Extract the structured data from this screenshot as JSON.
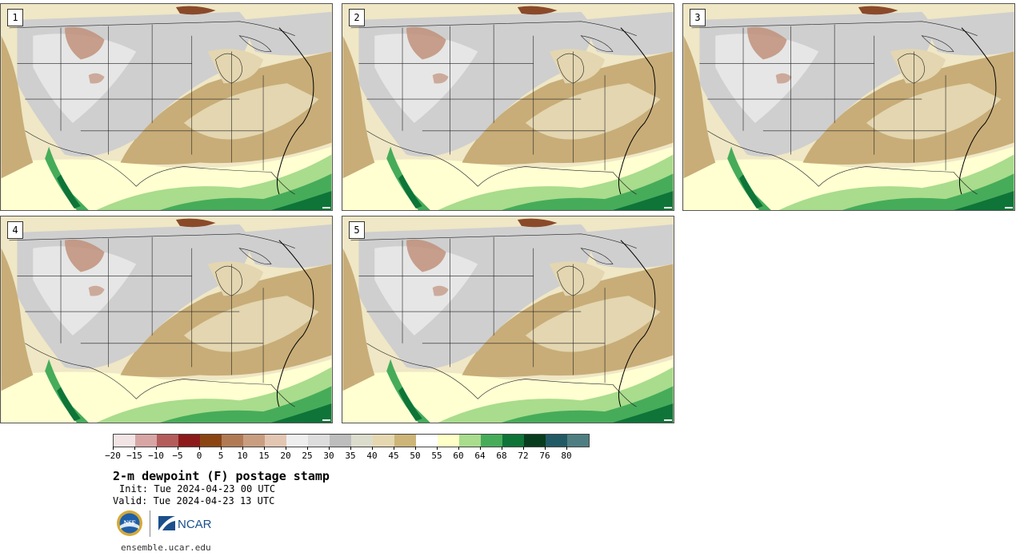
{
  "product": {
    "title": "2-m dewpoint (F) postage stamp",
    "init": "Init: Tue 2024-04-23 00 UTC",
    "valid": "Valid: Tue 2024-04-23 13 UTC",
    "site": "ensemble.ucar.edu"
  },
  "members": [
    {
      "number": "1"
    },
    {
      "number": "2"
    },
    {
      "number": "3"
    },
    {
      "number": "4"
    },
    {
      "number": "5"
    }
  ],
  "logos": {
    "nsf": "NSF",
    "ncar": "NCAR"
  },
  "colorbar": {
    "ticks": [
      "-20",
      "-15",
      "-10",
      "-5",
      "0",
      "5",
      "10",
      "15",
      "20",
      "25",
      "30",
      "35",
      "40",
      "45",
      "50",
      "55",
      "60",
      "64",
      "68",
      "72",
      "76",
      "80"
    ],
    "colors": [
      "#f2e4e4",
      "#d8a5a5",
      "#b45c5c",
      "#8c1a1a",
      "#8b4513",
      "#b07a55",
      "#c99e80",
      "#e2c6b2",
      "#eeeeee",
      "#dddddd",
      "#bdbdbd",
      "#dcdccc",
      "#e5d7b0",
      "#cdb478",
      "#ffffff",
      "#ffffc8",
      "#a9dc8c",
      "#46ac5a",
      "#0e7438",
      "#083c1e",
      "#215a64",
      "#4e7e82"
    ]
  },
  "map_colors": {
    "background": "#efe7c5",
    "dry_mountain": "#c0907a",
    "gray_dry": "#cfcfcf",
    "gray_light": "#e6e6e6",
    "tan": "#c8ad78",
    "light_tan": "#e3d6b0",
    "pale_yellow": "#ffffd2",
    "light_green": "#a9dc8c",
    "green": "#46ac5a",
    "dark_green": "#0e7438",
    "borders": "#222222"
  }
}
